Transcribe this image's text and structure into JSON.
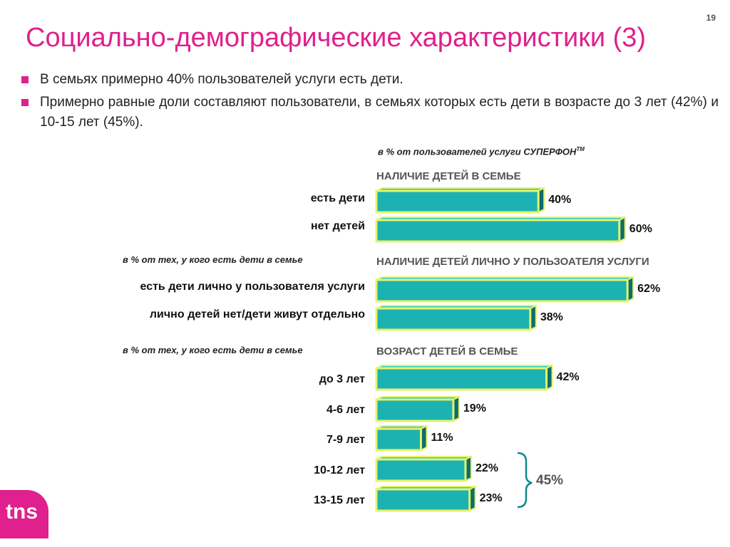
{
  "page_number": "19",
  "title": "Социально-демографические характеристики (3)",
  "bullets": [
    "В семьях примерно 40% пользователей услуги есть дети.",
    "Примерно равные доли составляют пользователи, в семьях которых есть дети в возрасте до 3 лет (42%) и 10-15 лет (45%)."
  ],
  "base_notes": {
    "top": "в % от пользователей услуги СУПЕРФОН",
    "top_tm": "TM",
    "section2": "в % от тех, у кого есть дети в семье",
    "section3": "в % от тех, у кого есть дети в семье"
  },
  "logo_text": "tns",
  "colors": {
    "accent": "#e0208c",
    "bar_face": "#1db2b2",
    "bar_side": "#0b6e6e",
    "bar_border": "#e8f26a"
  },
  "chart_data": [
    {
      "type": "bar",
      "orientation": "horizontal",
      "title": "НАЛИЧИЕ ДЕТЕЙ В СЕМЬЕ",
      "categories": [
        "есть дети",
        "нет детей"
      ],
      "values": [
        40,
        60
      ],
      "value_labels": [
        "40%",
        "60%"
      ]
    },
    {
      "type": "bar",
      "orientation": "horizontal",
      "title": "НАЛИЧИЕ ДЕТЕЙ ЛИЧНО У ПОЛЬЗОАТЕЛЯ УСЛУГИ",
      "categories": [
        "есть дети лично у пользователя услуги",
        "лично детей нет/дети живут отдельно"
      ],
      "values": [
        62,
        38
      ],
      "value_labels": [
        "62%",
        "38%"
      ]
    },
    {
      "type": "bar",
      "orientation": "horizontal",
      "title": "ВОЗРАСТ ДЕТЕЙ В СЕМЬЕ",
      "categories": [
        "до 3 лет",
        "4-6 лет",
        "7-9 лет",
        "10-12 лет",
        "13-15 лет"
      ],
      "values": [
        42,
        19,
        11,
        22,
        23
      ],
      "value_labels": [
        "42%",
        "19%",
        "11%",
        "22%",
        "23%"
      ],
      "annotations": [
        {
          "text": "45%",
          "groups": [
            "10-12 лет",
            "13-15 лет"
          ]
        }
      ]
    }
  ]
}
